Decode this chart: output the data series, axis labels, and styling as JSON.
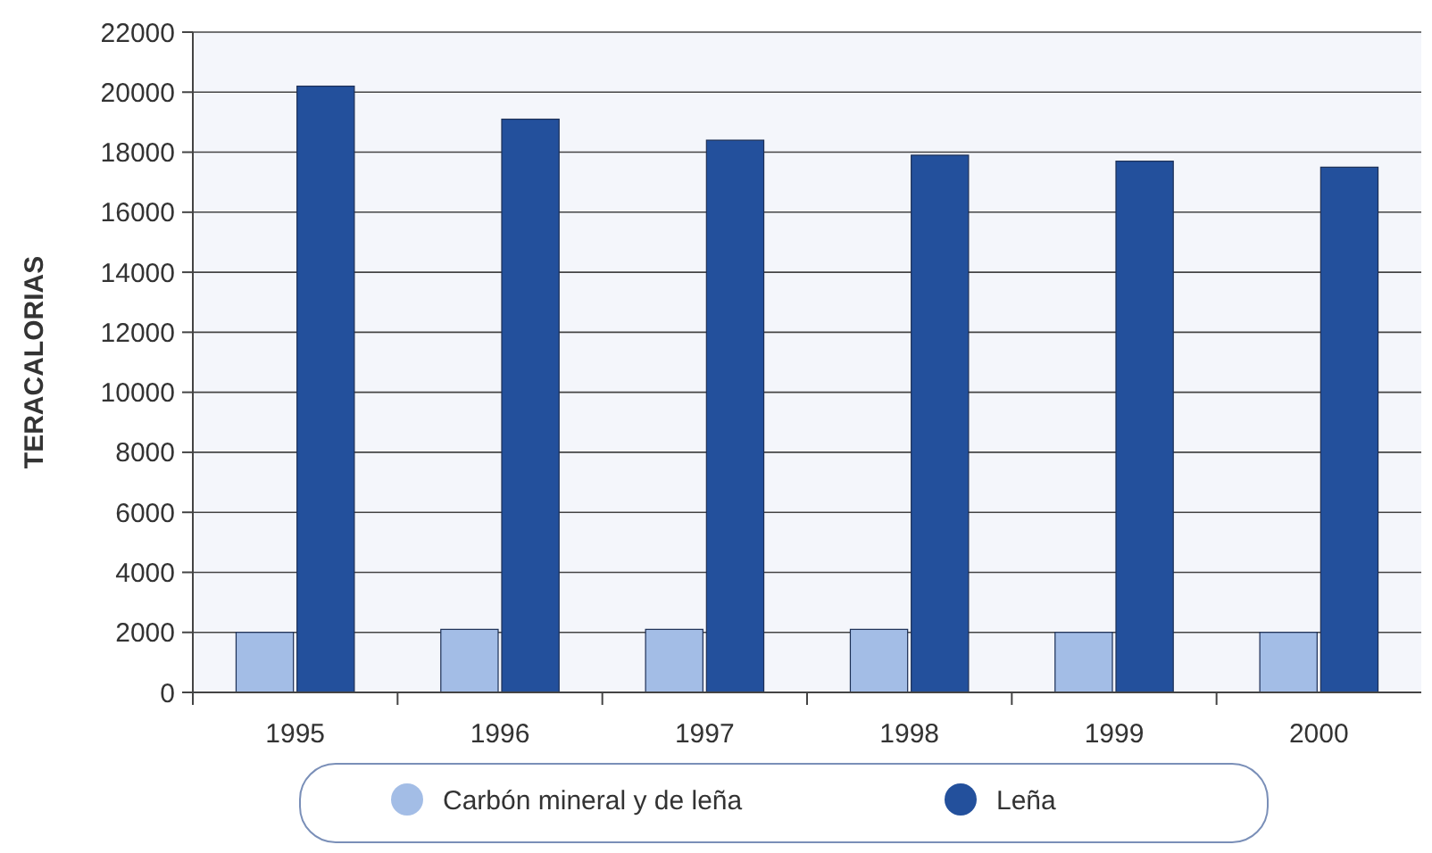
{
  "chart_data": {
    "type": "bar",
    "ylabel": "TERACALORIAS",
    "categories": [
      "1995",
      "1996",
      "1997",
      "1998",
      "1999",
      "2000"
    ],
    "series": [
      {
        "name": "Carbón mineral y de leña",
        "color": "#a3bde6",
        "values": [
          2000,
          2100,
          2100,
          2100,
          2000,
          2000
        ]
      },
      {
        "name": "Leña",
        "color": "#23509c",
        "values": [
          20200,
          19100,
          18400,
          17900,
          17700,
          17500
        ]
      }
    ],
    "ylim": [
      0,
      22000
    ],
    "yticks": [
      0,
      2000,
      4000,
      6000,
      8000,
      10000,
      12000,
      14000,
      16000,
      18000,
      20000,
      22000
    ],
    "grid": "y",
    "legend": "bottom"
  }
}
